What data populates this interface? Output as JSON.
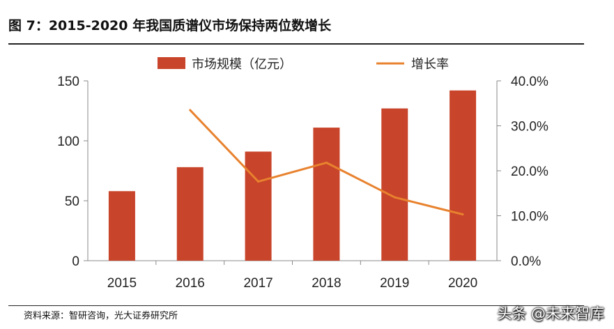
{
  "title": "图 7：2015-2020 年我国质谱仪市场保持两位数增长",
  "source": "资料来源：智研咨询，光大证券研究所",
  "watermark": "头条 @未来智库",
  "colors": {
    "bar": "#c8442a",
    "line": "#e8822e",
    "axis": "#888888"
  },
  "chart_data": {
    "type": "bar+line",
    "categories": [
      "2015",
      "2016",
      "2017",
      "2018",
      "2019",
      "2020"
    ],
    "series": [
      {
        "name": "市场规模（亿元）",
        "type": "bar",
        "axis": "left",
        "values": [
          58,
          78,
          91,
          111,
          127,
          142
        ]
      },
      {
        "name": "增长率",
        "type": "line",
        "axis": "right",
        "values": [
          null,
          33.5,
          17.6,
          21.8,
          14.1,
          10.3
        ]
      }
    ],
    "left_axis": {
      "ylim": [
        0,
        150
      ],
      "ticks": [
        0,
        50,
        100,
        150
      ],
      "tick_labels": [
        "0",
        "50",
        "100",
        "150"
      ]
    },
    "right_axis": {
      "ylim": [
        0,
        40
      ],
      "ticks": [
        0,
        10,
        20,
        30,
        40
      ],
      "tick_labels": [
        "0.0%",
        "10.0%",
        "20.0%",
        "30.0%",
        "40.0%"
      ]
    },
    "legend": {
      "position": "top",
      "bar_label": "市场规模（亿元）",
      "line_label": "增长率"
    },
    "grid": false
  }
}
